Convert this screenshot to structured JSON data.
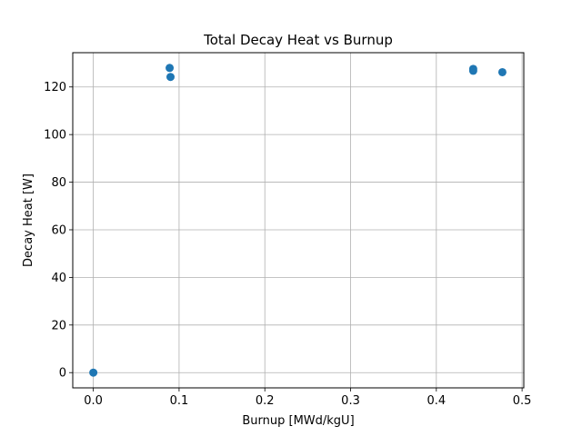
{
  "chart_data": {
    "type": "scatter",
    "title": "Total Decay Heat vs Burnup",
    "xlabel": "Burnup [MWd/kgU]",
    "ylabel": "Decay Heat [W]",
    "xlim": [
      -0.024,
      0.502
    ],
    "ylim": [
      -6.4,
      134.4
    ],
    "xticks": [
      0.0,
      0.1,
      0.2,
      0.3,
      0.4,
      0.5
    ],
    "xtick_labels": [
      "0.0",
      "0.1",
      "0.2",
      "0.3",
      "0.4",
      "0.5"
    ],
    "yticks": [
      0,
      20,
      40,
      60,
      80,
      100,
      120
    ],
    "ytick_labels": [
      "0",
      "20",
      "40",
      "60",
      "80",
      "100",
      "120"
    ],
    "grid": true,
    "legend": "none",
    "marker_color": "#1f77b4",
    "series": [
      {
        "x": [
          0.0,
          0.089,
          0.09,
          0.443,
          0.443,
          0.477
        ],
        "y": [
          0.0,
          128.0,
          124.2,
          127.6,
          126.8,
          126.2
        ]
      }
    ]
  }
}
